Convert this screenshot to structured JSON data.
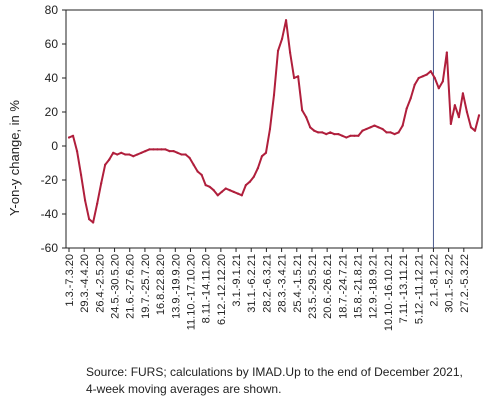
{
  "chart_data": {
    "type": "line",
    "ylabel": "Y-on-y change, in %",
    "ylim": [
      -60,
      80
    ],
    "yticks": [
      -60,
      -40,
      -20,
      0,
      20,
      40,
      60,
      80
    ],
    "grid": "none",
    "legend": "none",
    "line_color": "#b01f3c",
    "marker_line_color": "#4a5a8c",
    "x_tick_labels": [
      "1.3.-7.3.20",
      "29.3.-4.4.20",
      "26.4.-2.5.20",
      "24.5.-30.5.20",
      "21.6.-27.6.20",
      "19.7.-25.7.20",
      "16.8.22.8.20",
      "13.9.-19.9.20",
      "11.10.-17.10.20",
      "8.11.-14.11.20",
      "6.12.-12.12.20",
      "3.1.-9.1.21",
      "31.1.-6.2.21",
      "28.2.-6.3.21",
      "28.3.-3.4.21",
      "25.4.-1.5.21",
      "23.5.-29.5.21",
      "20.6.-26.6.21",
      "18.7.-24.7.21",
      "15.8.-21.8.21",
      "12.9.-18.9.21",
      "10.10.-16.10.21",
      "7.11.-13.11.21",
      "5.12.-11.12.21",
      "2.1.-8.1.22",
      "30.1.-5.2.22",
      "27.2.-5.3.22"
    ],
    "vertical_marker_after_tick": "5.12.-11.12.21",
    "series": [
      {
        "values": [
          5,
          6,
          -3,
          -17,
          -32,
          -43,
          -45,
          -34,
          -22,
          -11,
          -8,
          -4,
          -5,
          -4,
          -5,
          -5,
          -6,
          -5,
          -4,
          -3,
          -2,
          -2,
          -2,
          -2,
          -2,
          -3,
          -3,
          -4,
          -5,
          -5,
          -7,
          -11,
          -15,
          -17,
          -23,
          -24,
          -26,
          -29,
          -27,
          -25,
          -26,
          -27,
          -28,
          -29,
          -23,
          -21,
          -18,
          -13,
          -6,
          -4,
          10,
          30,
          56,
          63,
          74,
          55,
          40,
          41,
          21,
          17,
          11,
          9,
          8,
          8,
          7,
          8,
          7,
          7,
          6,
          5,
          6,
          6,
          6,
          9,
          10,
          11,
          12,
          11,
          10,
          8,
          8,
          7,
          8,
          12,
          22,
          28,
          36,
          40,
          41,
          42,
          44,
          40,
          34,
          38,
          55,
          13,
          24,
          17,
          31,
          20,
          11,
          9,
          18
        ]
      }
    ]
  },
  "source_note": "Source: FURS; calculations by IMAD.Up to the end of December 2021, 4-week moving averages are shown."
}
